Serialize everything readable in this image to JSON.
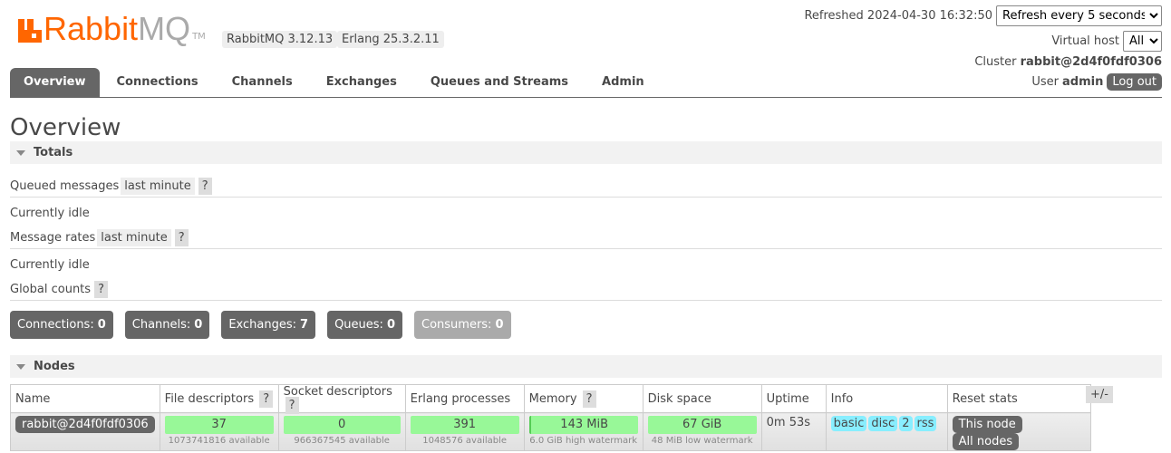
{
  "header": {
    "logo_text_1": "Rabbit",
    "logo_text_2": "MQ",
    "logo_tm": "TM",
    "version": "RabbitMQ 3.12.13",
    "erlang": "Erlang 25.3.2.11",
    "refreshed": "Refreshed 2024-04-30 16:32:50",
    "refresh_select": "Refresh every 5 seconds",
    "vhost_label": "Virtual host",
    "vhost_select": "All",
    "cluster_label": "Cluster",
    "cluster_name": "rabbit@2d4f0fdf0306",
    "user_label": "User",
    "user_name": "admin",
    "logout": "Log out"
  },
  "tabs": [
    "Overview",
    "Connections",
    "Channels",
    "Exchanges",
    "Queues and Streams",
    "Admin"
  ],
  "page_title": "Overview",
  "totals": {
    "title": "Totals",
    "queued_label": "Queued messages",
    "queued_range": "last minute",
    "help": "?",
    "idle1": "Currently idle",
    "rates_label": "Message rates",
    "rates_range": "last minute",
    "idle2": "Currently idle",
    "global_label": "Global counts"
  },
  "counts": [
    {
      "label": "Connections:",
      "value": "0"
    },
    {
      "label": "Channels:",
      "value": "0"
    },
    {
      "label": "Exchanges:",
      "value": "7"
    },
    {
      "label": "Queues:",
      "value": "0"
    },
    {
      "label": "Consumers:",
      "value": "0"
    }
  ],
  "nodes": {
    "title": "Nodes",
    "columns": [
      "Name",
      "File descriptors",
      "Socket descriptors",
      "Erlang processes",
      "Memory",
      "Disk space",
      "Uptime",
      "Info",
      "Reset stats"
    ],
    "plusminus": "+/-",
    "row": {
      "name": "rabbit@2d4f0fdf0306",
      "fd": "37",
      "fd_sub": "1073741816 available",
      "sd": "0",
      "sd_sub": "966367545 available",
      "ep": "391",
      "ep_sub": "1048576 available",
      "mem": "143 MiB",
      "mem_sub": "6.0 GiB high watermark",
      "disk": "67 GiB",
      "disk_sub": "48 MiB low watermark",
      "uptime": "0m 53s",
      "info": [
        "basic",
        "disc",
        "2",
        "rss"
      ],
      "reset_this": "This node",
      "reset_all": "All nodes"
    }
  },
  "colors": {
    "brand": "#ff6600",
    "bar": "#98f898",
    "info": "#88eeff"
  }
}
